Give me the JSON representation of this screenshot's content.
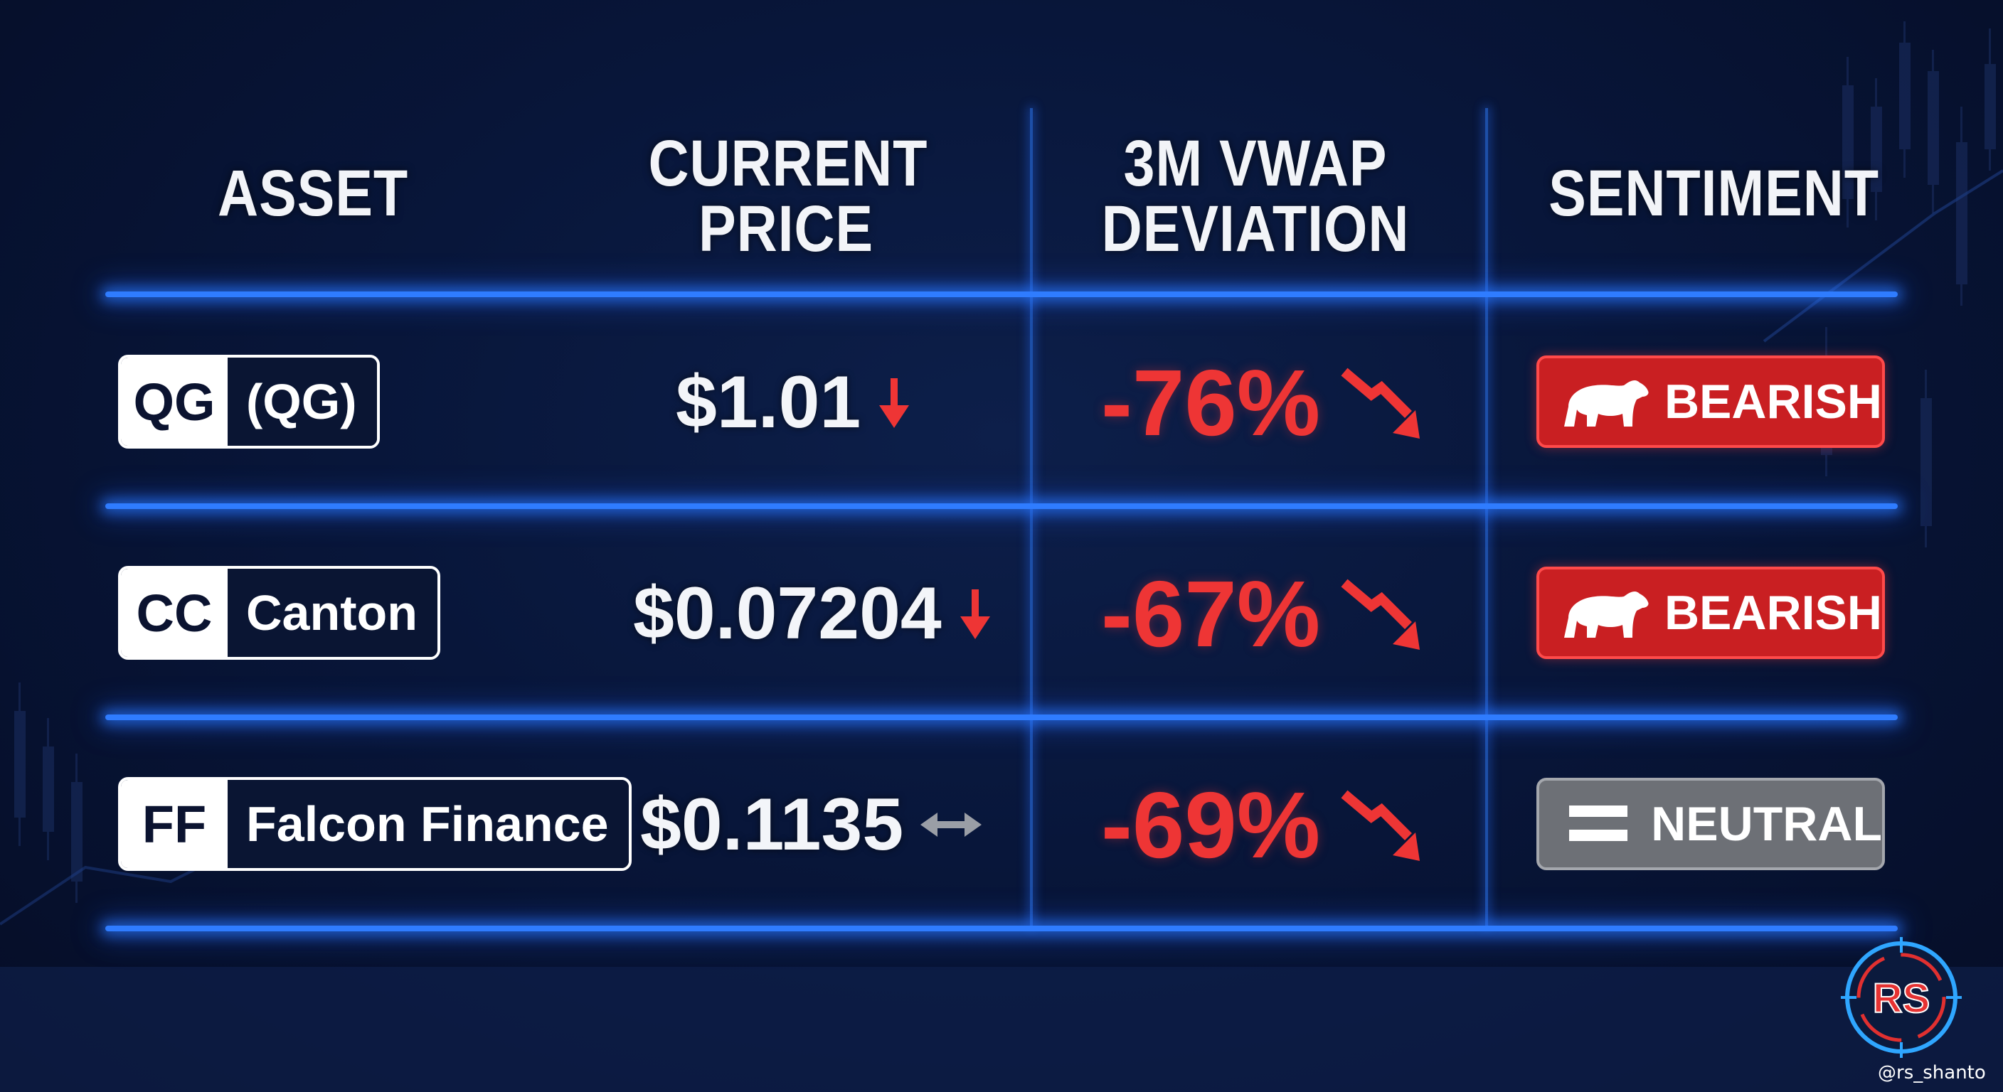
{
  "headers": {
    "asset": "ASSET",
    "price_line1": "CURRENT",
    "price_line2": "PRICE",
    "dev_line1": "3M VWAP",
    "dev_line2": "DEVIATION",
    "sentiment": "SENTIMENT"
  },
  "rows": [
    {
      "ticker": "QG",
      "name": "(QG)",
      "price": "$1.01",
      "price_trend": "down-arrow-icon",
      "deviation": "-76%",
      "sentiment": "BEARISH",
      "sentiment_icon": "bear-icon"
    },
    {
      "ticker": "CC",
      "name": "Canton",
      "price": "$0.07204",
      "price_trend": "down-arrow-icon",
      "deviation": "-67%",
      "sentiment": "BEARISH",
      "sentiment_icon": "bear-icon"
    },
    {
      "ticker": "FF",
      "name": "Falcon Finance",
      "price": "$0.1135",
      "price_trend": "sideways-arrow-icon",
      "deviation": "-69%",
      "sentiment": "NEUTRAL",
      "sentiment_icon": "equals-icon"
    }
  ],
  "colors": {
    "negative": "#ee3535",
    "bearish_badge": "#c91f22",
    "neutral_badge": "#6d7076",
    "divider": "#2f7cff",
    "background": "#08163a"
  },
  "watermark": {
    "logo_text": "RS",
    "handle": "@rs_shanto"
  }
}
